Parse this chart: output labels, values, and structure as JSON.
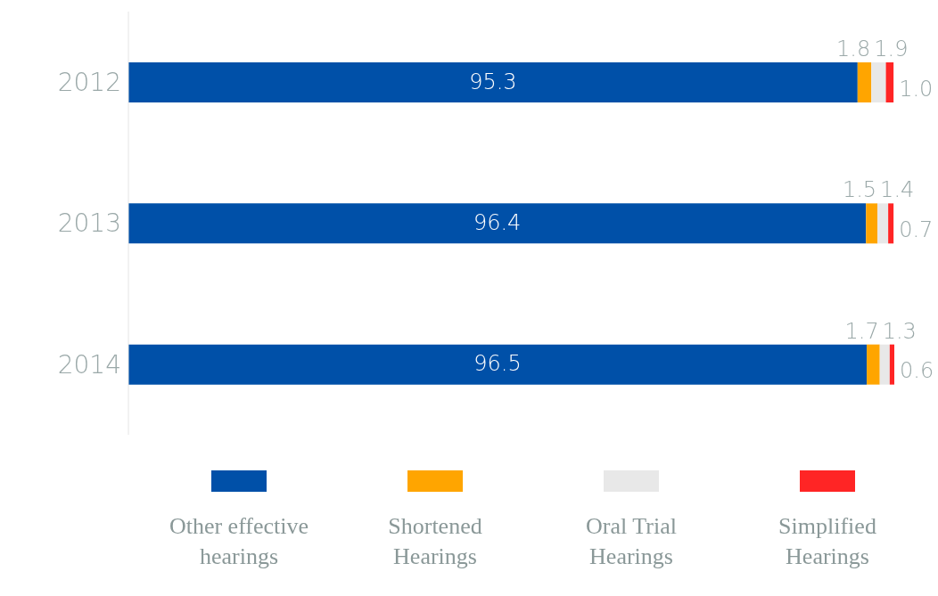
{
  "chart_data": {
    "type": "bar",
    "orientation": "horizontal",
    "stacked": true,
    "legend": "bottom",
    "categories": [
      "2012",
      "2013",
      "2014"
    ],
    "series": [
      {
        "name": "Other effective hearings",
        "color": "#0050a8",
        "values": [
          95.3,
          96.4,
          96.5
        ],
        "value_labels": [
          "95.3",
          "96.4",
          "96.5"
        ]
      },
      {
        "name": "Shortened Hearings",
        "color": "#ffa500",
        "values": [
          1.8,
          1.5,
          1.7
        ],
        "value_labels": [
          "1.8",
          "1.5",
          "1.7"
        ]
      },
      {
        "name": "Oral Trial Hearings",
        "color": "#e8e8e8",
        "values": [
          1.9,
          1.4,
          1.3
        ],
        "value_labels": [
          "1.9",
          "1.4",
          "1.3"
        ]
      },
      {
        "name": "Simplified Hearings",
        "color": "#ff2525",
        "values": [
          1.0,
          0.7,
          0.6
        ],
        "value_labels": [
          "1.0",
          "0.7",
          "0.6"
        ]
      }
    ]
  }
}
